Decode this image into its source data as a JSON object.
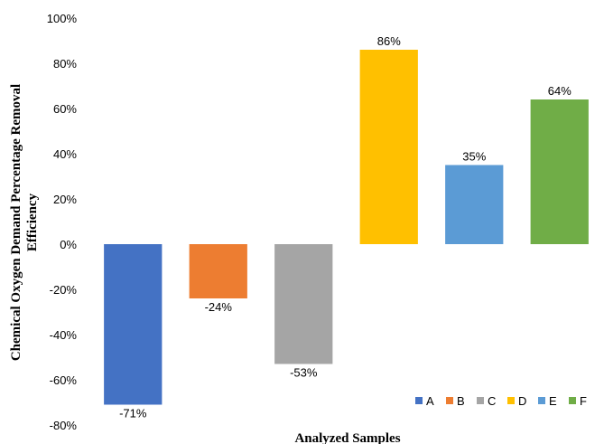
{
  "chart_data": {
    "type": "bar",
    "categories": [
      "A",
      "B",
      "C",
      "D",
      "E",
      "F"
    ],
    "values": [
      -71,
      -24,
      -53,
      86,
      35,
      64
    ],
    "data_labels": [
      "-71%",
      "-24%",
      "-53%",
      "86%",
      "35%",
      "64%"
    ],
    "colors": [
      "#4472C4",
      "#ED7D31",
      "#A5A5A5",
      "#FFC000",
      "#5B9BD5",
      "#70AD47"
    ],
    "xlabel": "Analyzed Samples",
    "ylabel_line1": "Chemical Oxygen Demand Percentage Removal",
    "ylabel_line2": "Efficiency",
    "ylim": [
      -80,
      100
    ],
    "yticks": [
      -80,
      -60,
      -40,
      -20,
      0,
      20,
      40,
      60,
      80,
      100
    ],
    "ytick_labels": [
      "-80%",
      "-60%",
      "-40%",
      "-20%",
      "0%",
      "20%",
      "40%",
      "60%",
      "80%",
      "100%"
    ],
    "grid": false,
    "legend": {
      "position": "bottom-right",
      "entries": [
        "A",
        "B",
        "C",
        "D",
        "E",
        "F"
      ]
    }
  }
}
